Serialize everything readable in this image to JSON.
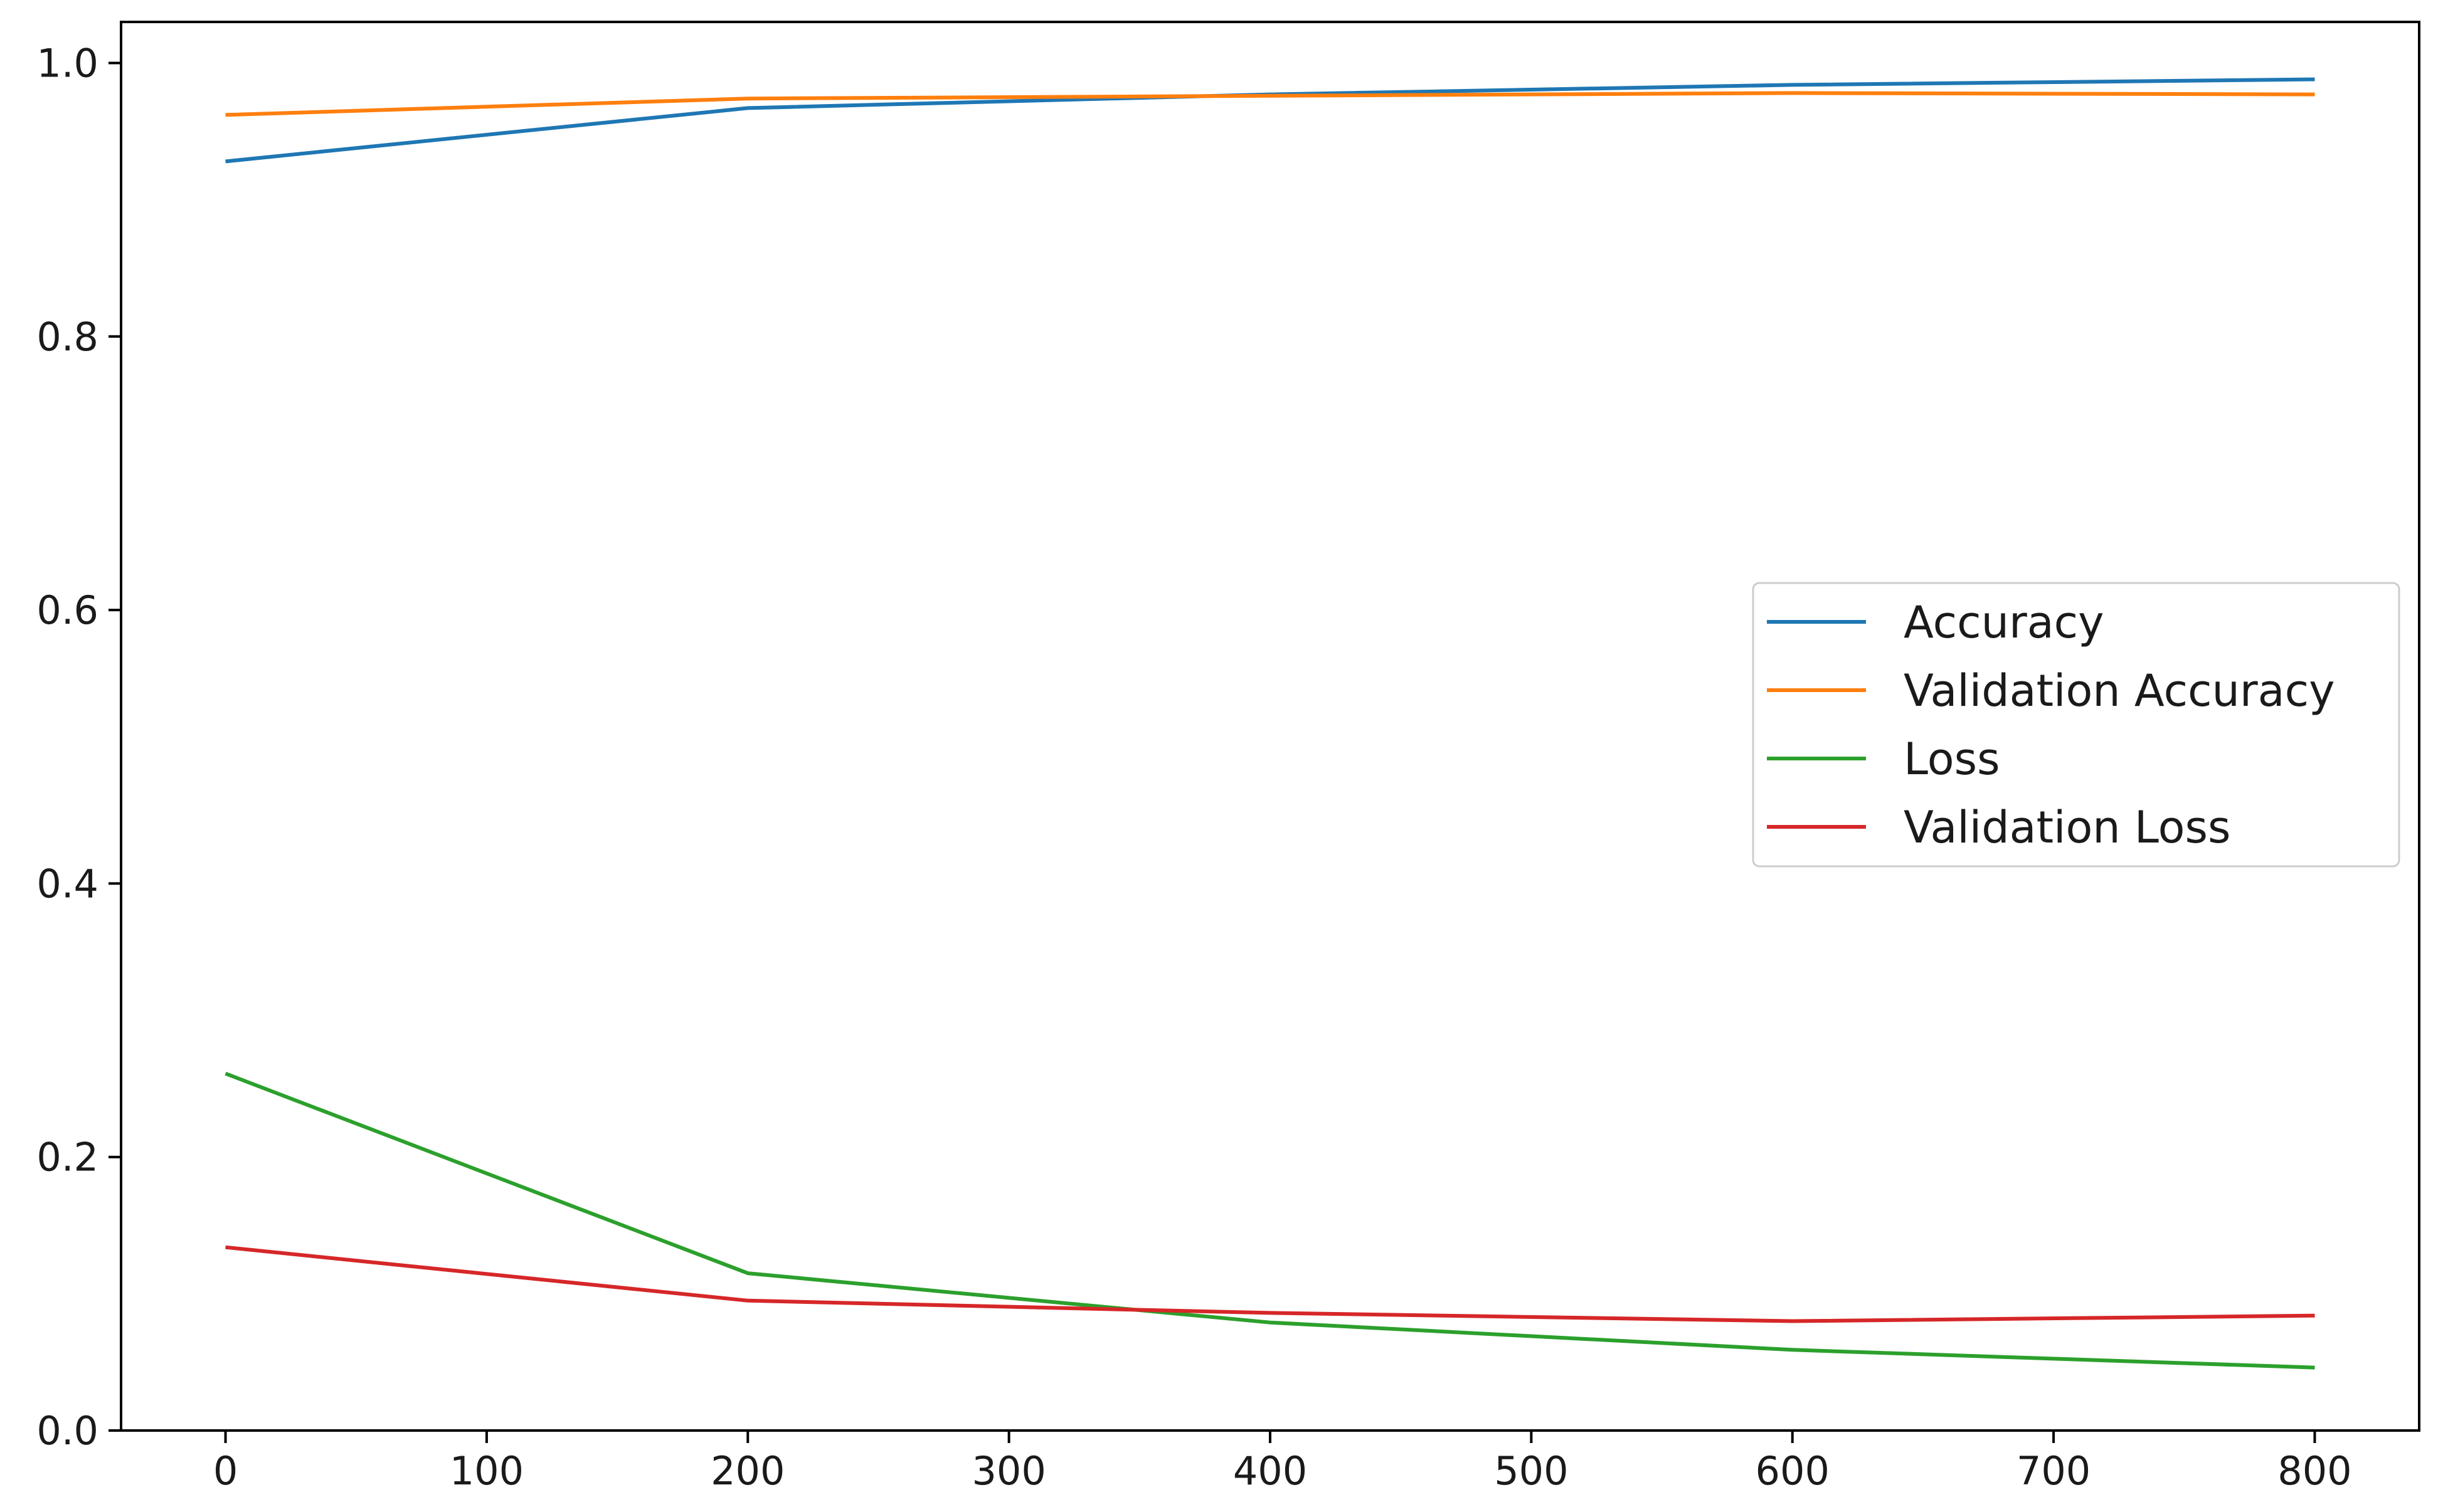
{
  "chart_data": {
    "type": "line",
    "title": "",
    "xlabel": "",
    "ylabel": "",
    "xlim": [
      -40,
      840
    ],
    "ylim": [
      0,
      1.03
    ],
    "x_ticks": [
      "0",
      "100",
      "200",
      "300",
      "400",
      "500",
      "600",
      "700",
      "800"
    ],
    "x_tick_values": [
      0,
      100,
      200,
      300,
      400,
      500,
      600,
      700,
      800
    ],
    "y_ticks": [
      "0.0",
      "0.2",
      "0.4",
      "0.6",
      "0.8",
      "1.0"
    ],
    "y_tick_values": [
      0.0,
      0.2,
      0.4,
      0.6,
      0.8,
      1.0
    ],
    "grid": false,
    "legend_position": "center-right",
    "series": [
      {
        "name": "Accuracy",
        "color": "#1f77b4",
        "x": [
          0,
          200,
          400,
          600,
          800
        ],
        "y": [
          0.928,
          0.967,
          0.977,
          0.984,
          0.988
        ]
      },
      {
        "name": "Validation Accuracy",
        "color": "#ff7f0e",
        "x": [
          0,
          200,
          400,
          600,
          800
        ],
        "y": [
          0.962,
          0.974,
          0.976,
          0.978,
          0.977
        ]
      },
      {
        "name": "Loss",
        "color": "#2ca02c",
        "x": [
          0,
          200,
          400,
          600,
          800
        ],
        "y": [
          0.261,
          0.115,
          0.079,
          0.059,
          0.046
        ]
      },
      {
        "name": "Validation Loss",
        "color": "#d62728",
        "x": [
          0,
          200,
          400,
          600,
          800
        ],
        "y": [
          0.134,
          0.095,
          0.086,
          0.08,
          0.084
        ]
      }
    ]
  }
}
